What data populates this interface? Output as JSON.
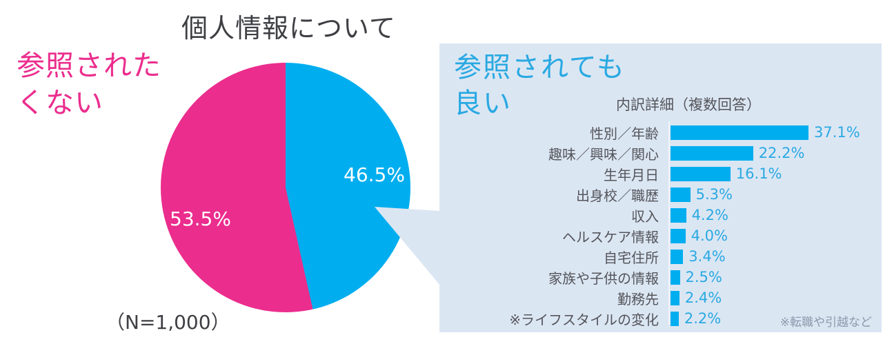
{
  "title": "個人情報について",
  "pie": {
    "label_line1": "参照された",
    "label_line2": "くない",
    "pink_value_label": "53.5%",
    "blue_value_label": "46.5%",
    "sample_size": "（N=1,000）"
  },
  "panel": {
    "heading_line1": "参照されても",
    "heading_line2": "良い",
    "chart_title": "内訳詳細（複数回答）",
    "footnote": "※転職や引越など"
  },
  "colors": {
    "pink": "#EB2D8D",
    "blue": "#00AEEF",
    "blue_text": "#29A9E2",
    "panel_bg": "#DBE6F3",
    "dark_text": "#3E3F43",
    "gray_text": "#54555A",
    "footnote_text": "#8C99AB",
    "axis_line": "#F0F5FA"
  },
  "chart_data": [
    {
      "type": "pie",
      "title": "個人情報について",
      "labels": [
        "参照されたくない",
        "参照されても良い"
      ],
      "values": [
        53.5,
        46.5
      ],
      "colors": [
        "#EB2D8D",
        "#00AEEF"
      ],
      "unit": "%",
      "sample_note": "（N=1,000）",
      "start": "blue slice begins at 12 o'clock, clockwise"
    },
    {
      "type": "bar",
      "orientation": "horizontal",
      "title": "内訳詳細（複数回答）",
      "categories": [
        "性別／年齢",
        "趣味／興味／関心",
        "生年月日",
        "出身校／職歴",
        "収入",
        "ヘルスケア情報",
        "自宅住所",
        "家族や子供の情報",
        "勤務先",
        "※ライフスタイルの変化"
      ],
      "values": [
        37.1,
        22.2,
        16.1,
        5.3,
        4.2,
        4.0,
        3.4,
        2.5,
        2.4,
        2.2
      ],
      "unit": "%",
      "xlim": [
        0,
        40
      ],
      "bar_color": "#00AEEF",
      "footnote": "※転職や引越など",
      "grid": false,
      "legend": false
    }
  ]
}
